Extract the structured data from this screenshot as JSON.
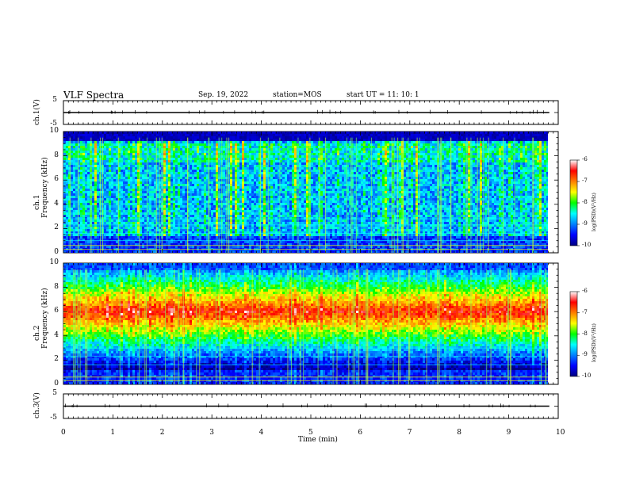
{
  "header": {
    "title": "VLF Spectra",
    "date": "Sep. 19, 2022",
    "station": "station=MOS",
    "start_ut": "start UT =  11: 10: 1"
  },
  "chart_data": [
    {
      "type": "line",
      "title": "",
      "ylabel": "ch.1(V)",
      "ylim": [
        -5,
        5
      ],
      "yticks": [
        "5",
        "-5"
      ],
      "xlim": [
        0,
        10
      ],
      "series": [
        {
          "x": [
            0,
            9.82
          ],
          "y": [
            0,
            0
          ]
        }
      ]
    },
    {
      "type": "heatmap",
      "ylabel": "ch.1\nFrequency (kHz)",
      "ylim": [
        0,
        10
      ],
      "yticks": [
        0,
        2,
        4,
        6,
        8,
        10
      ],
      "xlim": [
        0,
        10
      ],
      "data_extent_x": [
        0,
        9.82
      ],
      "colorbar": {
        "label": "log(PSD)(V²/Hz)",
        "range": [
          -10,
          -6
        ],
        "ticks": [
          -10,
          -9,
          -8,
          -7,
          -6
        ]
      }
    },
    {
      "type": "heatmap",
      "ylabel": "ch.2\nFrequency (kHz)",
      "ylim": [
        0,
        10
      ],
      "yticks": [
        0,
        2,
        4,
        6,
        8,
        10
      ],
      "xlim": [
        0,
        10
      ],
      "data_extent_x": [
        0,
        9.82
      ],
      "colorbar": {
        "label": "log(PSD)(V²/Hz)",
        "range": [
          -10,
          -6
        ],
        "ticks": [
          -10,
          -9,
          -8,
          -7,
          -6
        ]
      }
    },
    {
      "type": "line",
      "ylabel": "ch.3(V)",
      "ylim": [
        -5,
        5
      ],
      "yticks": [
        "5",
        "-5"
      ],
      "xlim": [
        0,
        10
      ],
      "xlabel": "Time (min)",
      "xticks": [
        0,
        1,
        2,
        3,
        4,
        5,
        6,
        7,
        8,
        9,
        10
      ],
      "series": [
        {
          "x": [
            0,
            9.82
          ],
          "y": [
            0,
            0
          ]
        }
      ]
    }
  ]
}
